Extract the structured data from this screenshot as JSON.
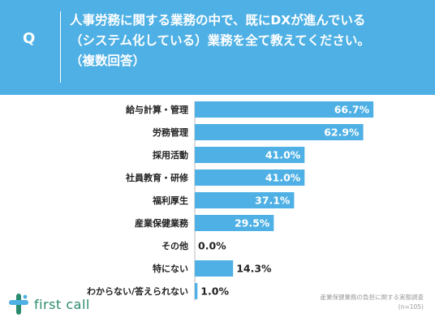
{
  "header": {
    "q_mark": "Q",
    "question_lines": [
      "人事労務に関する業務の中で、既にDXが進んでいる",
      "（システム化している）業務を全て教えてください。",
      "（複数回答）"
    ]
  },
  "colors": {
    "header_bg": "#4eb0e4",
    "bar": "#4eb0e4",
    "bar_label": "#ffffff",
    "axis": "#bbbbbb",
    "logo": "#2a8a6e"
  },
  "chart_data": {
    "type": "bar",
    "orientation": "horizontal",
    "categories": [
      "給与計算・管理",
      "労務管理",
      "採用活動",
      "社員教育・研修",
      "福利厚生",
      "産業保健業務",
      "その他",
      "特にない",
      "わからない/答えられない"
    ],
    "values": [
      66.7,
      62.9,
      41.0,
      41.0,
      37.1,
      29.5,
      0.0,
      14.3,
      1.0
    ],
    "value_labels": [
      "66.7%",
      "62.9%",
      "41.0%",
      "41.0%",
      "37.1%",
      "29.5%",
      "0.0%",
      "14.3%",
      "1.0%"
    ],
    "unit": "%",
    "xlim": [
      0,
      100
    ],
    "grid": false,
    "legend": "none"
  },
  "footer": {
    "logo_text": "first call",
    "source_title": "産業保健業務の負担に関する実態調査",
    "sample_size": "(n=105)"
  }
}
